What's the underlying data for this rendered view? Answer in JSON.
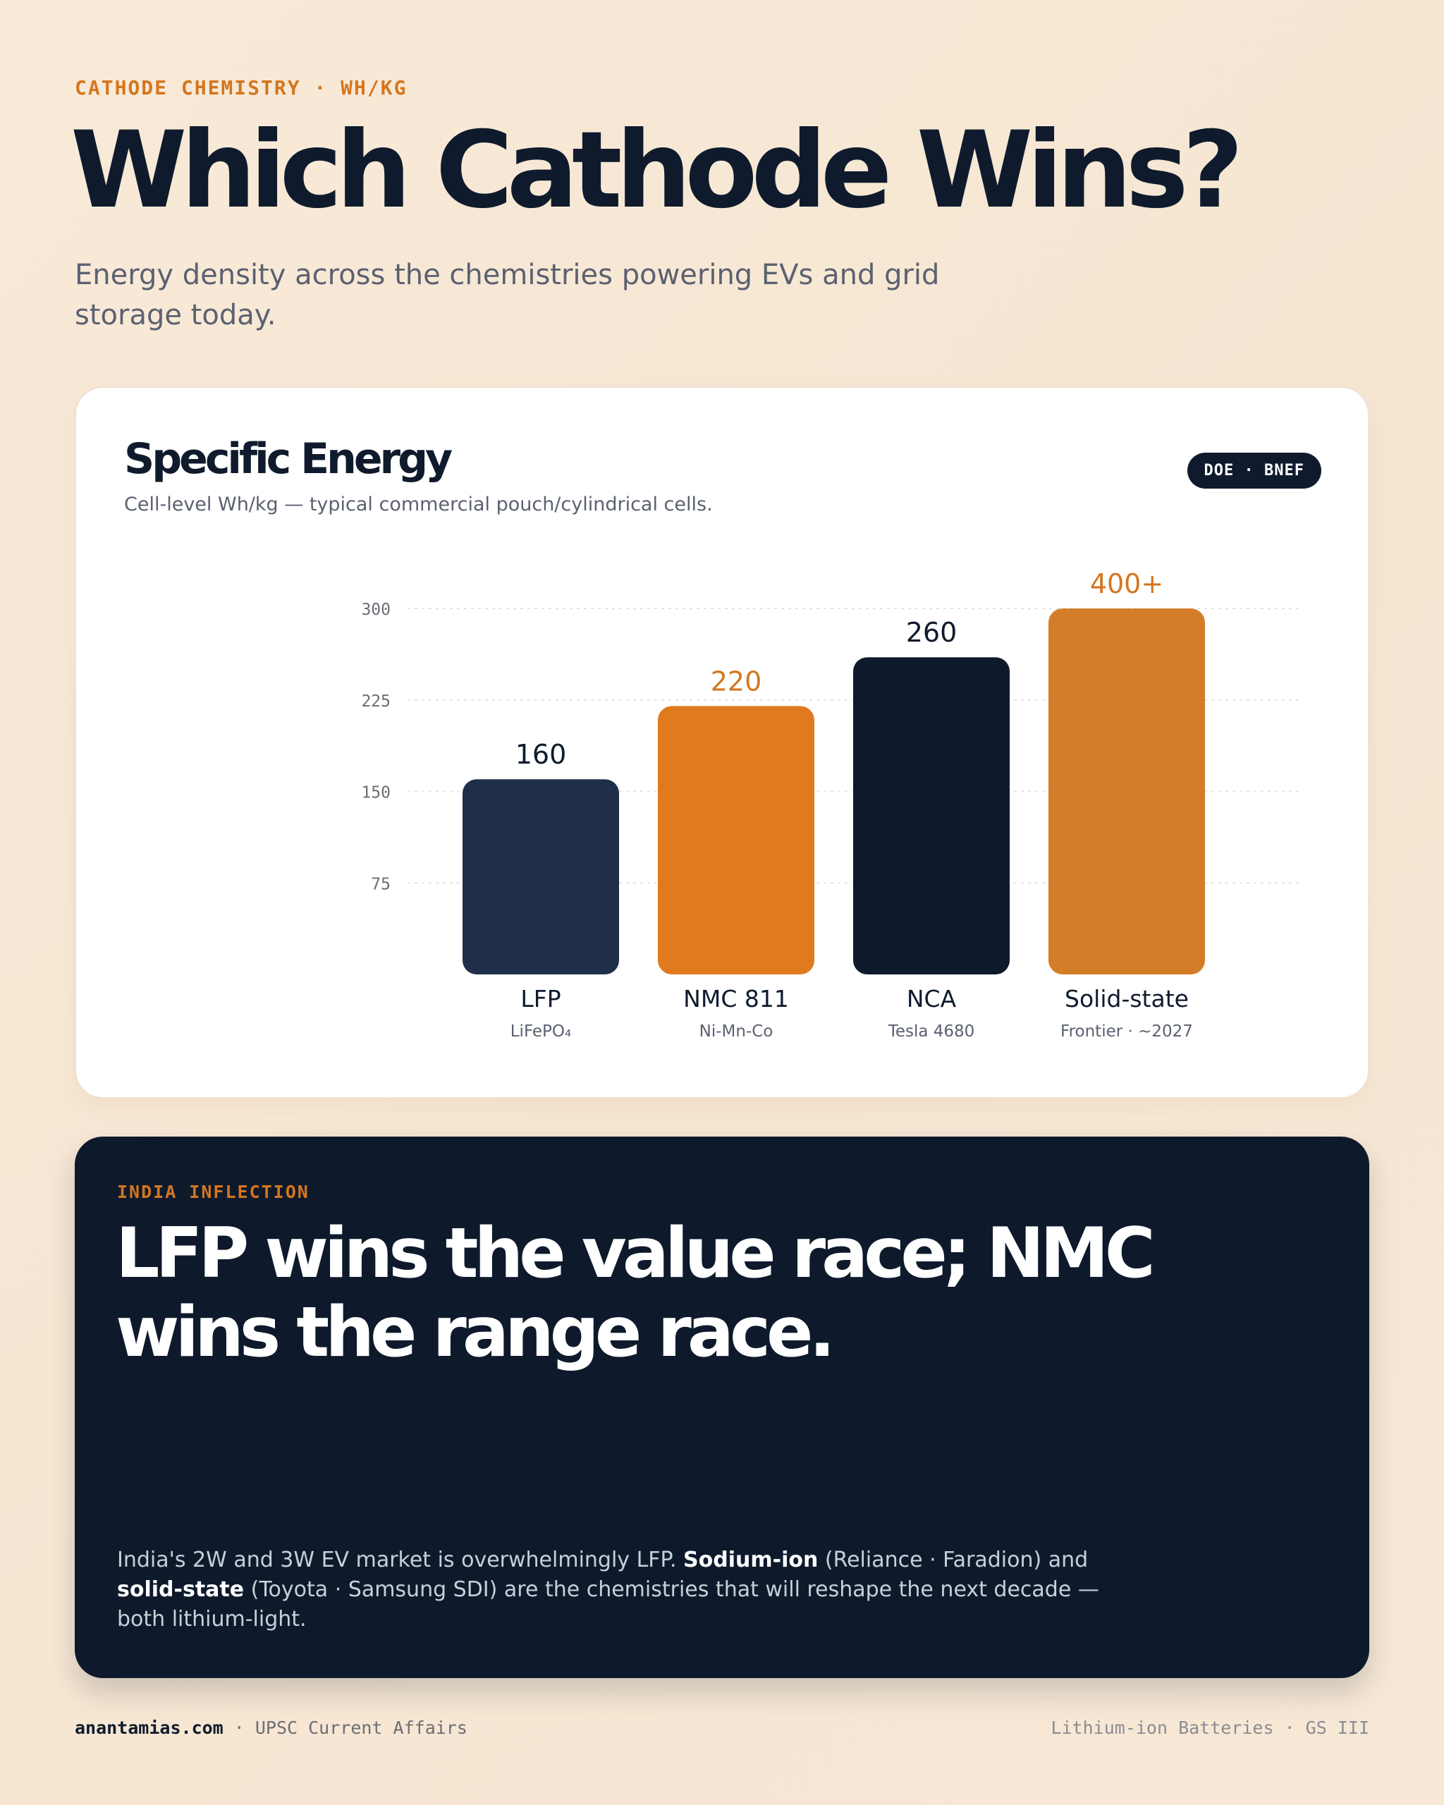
{
  "header": {
    "eyebrow": "CATHODE CHEMISTRY · WH/KG",
    "title": "Which Cathode Wins?",
    "subtitle": "Energy density across the chemistries powering EVs and grid storage today."
  },
  "chart_card": {
    "title": "Specific Energy",
    "subtitle": "Cell-level Wh/kg — typical commercial pouch/cylindrical cells.",
    "badge": "DOE · BNEF"
  },
  "chart_data": {
    "type": "bar",
    "title": "Specific Energy",
    "ylabel": "",
    "xlabel": "",
    "ylim": [
      0,
      300
    ],
    "yticks": [
      75,
      150,
      225,
      300
    ],
    "grid": true,
    "categories": [
      "LFP",
      "NMC 811",
      "NCA",
      "Solid-state"
    ],
    "sublabels": [
      "LiFePO₄",
      "Ni-Mn-Co",
      "Tesla 4680",
      "Frontier · ~2027"
    ],
    "values": [
      160,
      220,
      260,
      400
    ],
    "value_labels": [
      "160",
      "220",
      "260",
      "400+"
    ],
    "bar_colors": [
      "#1f2f4a",
      "#e07a1f",
      "#0e1a2c",
      "#d47d28"
    ],
    "label_colors": [
      "#0f1b2d",
      "#d4761f",
      "#0f1b2d",
      "#d4761f"
    ]
  },
  "insight": {
    "eyebrow": "INDIA INFLECTION",
    "headline": "LFP wins the value race; NMC wins the range race.",
    "body_1": "India's 2W and 3W EV market is overwhelmingly LFP. ",
    "body_bold_1": "Sodium-ion",
    "body_2": " (Reliance · Faradion) and ",
    "body_bold_2": "solid-state",
    "body_3": " (Toyota · Samsung SDI) are the chemistries that will reshape the next decade — both lithium-light."
  },
  "footer": {
    "site": "anantamias.com",
    "left_suffix": " · UPSC Current Affairs",
    "right": "Lithium-ion Batteries · GS III"
  }
}
